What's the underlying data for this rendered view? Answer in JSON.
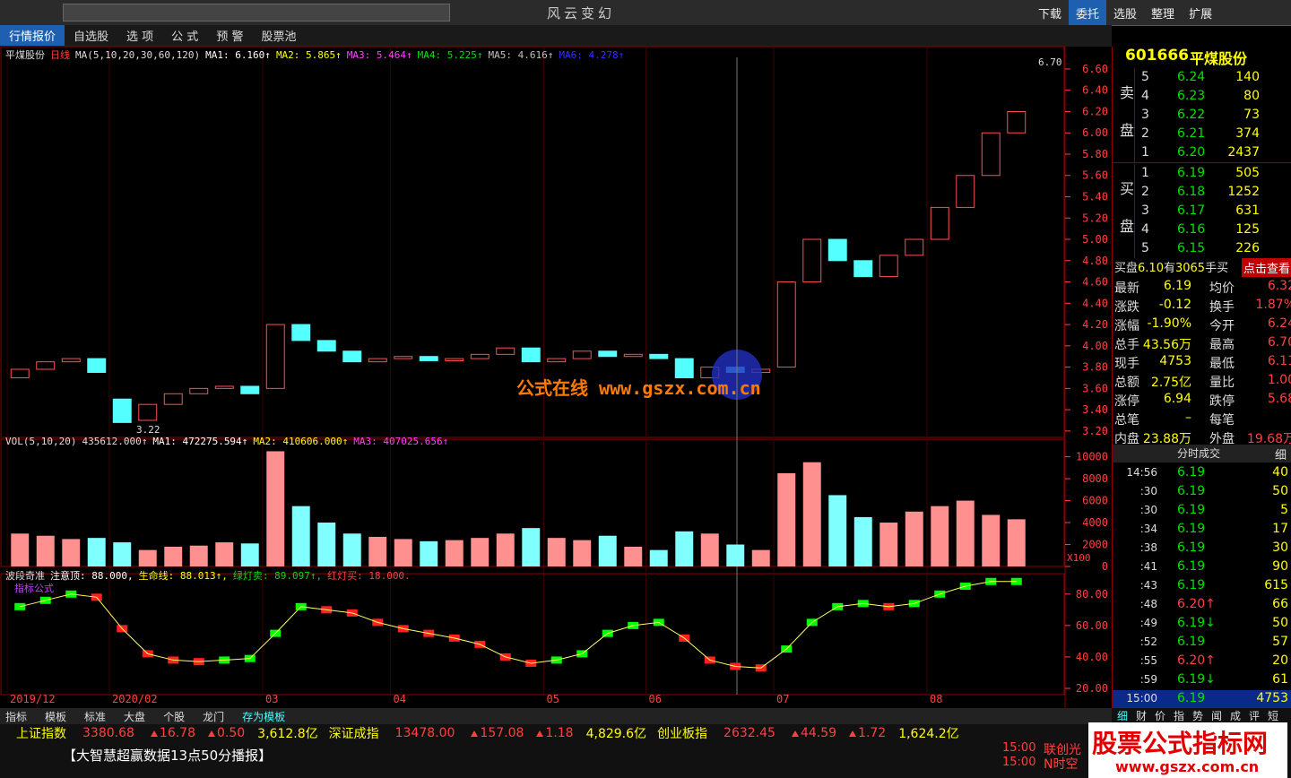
{
  "toolbar": {
    "title": "风云变幻",
    "tabs": [
      "行情报价",
      "自选股",
      "选 项",
      "公 式",
      "预 警",
      "股票池"
    ],
    "right": [
      "下载",
      "委托",
      "选股",
      "整理",
      "扩展"
    ]
  },
  "chart": {
    "type": "candlestick",
    "stock_name": "平煤股份",
    "period": "日线",
    "ma_legend": "MA(5,10,20,30,60,120)",
    "mas": [
      {
        "label": "MA1: 6.160↑",
        "color": "#ffffff"
      },
      {
        "label": "MA2: 5.865↑",
        "color": "#ffff00"
      },
      {
        "label": "MA3: 5.464↑",
        "color": "#ff40ff"
      },
      {
        "label": "MA4: 5.225↑",
        "color": "#00e000"
      },
      {
        "label": "MA5: 4.616↑",
        "color": "#c0c0c0"
      },
      {
        "label": "MA6: 4.278↑",
        "color": "#3030ff"
      }
    ],
    "ylim": [
      3.14,
      6.81
    ],
    "yticks": [
      {
        "value": 3.2,
        "label": "3.20"
      },
      {
        "value": 3.4,
        "label": "3.40"
      },
      {
        "value": 3.6,
        "label": "3.60"
      },
      {
        "value": 3.8,
        "label": "3.80"
      },
      {
        "value": 4.0,
        "label": "4.00"
      },
      {
        "value": 4.2,
        "label": "4.20"
      },
      {
        "value": 4.4,
        "label": "4.40"
      },
      {
        "value": 4.6,
        "label": "4.60"
      },
      {
        "value": 4.8,
        "label": "4.80"
      },
      {
        "value": 5.0,
        "label": "5.00"
      },
      {
        "value": 5.2,
        "label": "5.20"
      },
      {
        "value": 5.4,
        "label": "5.40"
      },
      {
        "value": 5.6,
        "label": "5.60"
      },
      {
        "value": 5.8,
        "label": "5.80"
      },
      {
        "value": 6.0,
        "label": "6.00"
      },
      {
        "value": 6.2,
        "label": "6.20"
      },
      {
        "value": 6.4,
        "label": "6.40"
      },
      {
        "value": 6.6,
        "label": "6.60"
      }
    ],
    "high_label": "6.70",
    "low_label": "3.22",
    "watermark": "公式在线 www.gszx.com.cn",
    "categories": [
      "2019/12",
      null,
      null,
      null,
      "2020/02",
      null,
      null,
      null,
      null,
      null,
      "03",
      null,
      null,
      null,
      null,
      "04",
      null,
      null,
      null,
      null,
      null,
      "05",
      null,
      null,
      null,
      "06",
      null,
      null,
      null,
      null,
      "07",
      null,
      null,
      null,
      null,
      null,
      "08",
      null,
      null,
      null
    ],
    "open": [
      3.7,
      3.78,
      3.85,
      3.88,
      3.5,
      3.3,
      3.45,
      3.55,
      3.6,
      3.62,
      3.6,
      4.2,
      4.05,
      3.95,
      3.85,
      3.88,
      3.9,
      3.86,
      3.88,
      3.92,
      3.98,
      3.85,
      3.88,
      3.95,
      3.9,
      3.92,
      3.88,
      3.7,
      3.8,
      3.75,
      3.8,
      4.6,
      5.0,
      4.8,
      4.65,
      4.85,
      5.0,
      5.3,
      5.6,
      6.0
    ],
    "close": [
      3.78,
      3.85,
      3.88,
      3.75,
      3.28,
      3.45,
      3.55,
      3.6,
      3.62,
      3.55,
      4.2,
      4.05,
      3.95,
      3.85,
      3.88,
      3.9,
      3.86,
      3.88,
      3.92,
      3.98,
      3.85,
      3.88,
      3.95,
      3.9,
      3.92,
      3.88,
      3.7,
      3.8,
      3.75,
      3.78,
      4.6,
      5.0,
      4.8,
      4.65,
      4.85,
      5.0,
      5.3,
      5.6,
      6.0,
      6.2
    ],
    "vol_legend": [
      "VOL(5,10,20)",
      "435612.000↑",
      "MA1: 472275.594↑",
      "MA2: 410606.000↑",
      "MA3: 407025.656↑"
    ],
    "vol_unit": "X100",
    "vol_ylim": [
      0,
      11600
    ],
    "vol_yticks": [
      0,
      2000,
      4000,
      6000,
      8000,
      10000
    ],
    "volumes": [
      3000,
      2800,
      2500,
      2600,
      2200,
      1500,
      1800,
      1900,
      2200,
      2100,
      10500,
      5500,
      4000,
      3000,
      2700,
      2500,
      2300,
      2400,
      2600,
      3000,
      3500,
      2600,
      2400,
      2800,
      1800,
      1500,
      3200,
      3000,
      2000,
      1500,
      8500,
      9500,
      6500,
      4500,
      4000,
      5000,
      5500,
      6000,
      4700,
      4300
    ],
    "ind_legend": [
      {
        "label": "波段奇准",
        "color": "#dddddd"
      },
      {
        "label": "注意顶: 88.000,",
        "color": "#ffffff"
      },
      {
        "label": "生命线: 88.013↑,",
        "color": "#ffff00"
      },
      {
        "label": "绿灯卖: 89.097↑,",
        "color": "#00e000"
      },
      {
        "label": "红灯买: 18.000.",
        "color": "#ff4040"
      }
    ],
    "ind_title": "指标公式",
    "ind_ylim": [
      16,
      93
    ],
    "ind_yticks": [
      {
        "value": 20,
        "label": "20.00"
      },
      {
        "value": 40,
        "label": "40.00"
      },
      {
        "value": 60,
        "label": "60.00"
      },
      {
        "value": 80,
        "label": "80.00"
      }
    ],
    "ind_values": [
      72,
      76,
      80,
      78,
      58,
      42,
      38,
      37,
      38,
      39,
      55,
      72,
      70,
      68,
      62,
      58,
      55,
      52,
      48,
      40,
      36,
      38,
      42,
      55,
      60,
      62,
      52,
      38,
      34,
      33,
      45,
      62,
      72,
      74,
      72,
      74,
      80,
      85,
      88,
      88
    ]
  },
  "quote": {
    "code": "601666",
    "name": "平煤股份",
    "sell_label": [
      "卖",
      "盘"
    ],
    "buy_label": [
      "买",
      "盘"
    ],
    "sell": [
      [
        "5",
        "6.24",
        "140"
      ],
      [
        "4",
        "6.23",
        "80"
      ],
      [
        "3",
        "6.22",
        "73"
      ],
      [
        "2",
        "6.21",
        "374"
      ],
      [
        "1",
        "6.20",
        "2437"
      ]
    ],
    "buy": [
      [
        "1",
        "6.19",
        "505"
      ],
      [
        "2",
        "6.18",
        "1252"
      ],
      [
        "3",
        "6.17",
        "631"
      ],
      [
        "4",
        "6.16",
        "125"
      ],
      [
        "5",
        "6.15",
        "226"
      ]
    ],
    "buy_note": [
      "买盘",
      "6.10",
      "有",
      "3065",
      "手买"
    ],
    "view_btn": "点击查看",
    "stats": [
      [
        "最新",
        "6.19",
        "均价",
        "6.32"
      ],
      [
        "涨跌",
        "-0.12",
        "换手",
        "1.87%"
      ],
      [
        "涨幅",
        "-1.90%",
        "今开",
        "6.24"
      ],
      [
        "总手",
        "43.56万",
        "最高",
        "6.70"
      ],
      [
        "现手",
        "4753",
        "最低",
        "6.11"
      ],
      [
        "总额",
        "2.75亿",
        "量比",
        "1.00"
      ],
      [
        "涨停",
        "6.94",
        "跌停",
        "5.68"
      ],
      [
        "总笔",
        "–",
        "每笔"
      ],
      [
        "内盘",
        "23.88万",
        "外盘",
        "19.68万"
      ]
    ],
    "ticks_title": "分时成交",
    "ticks_btn": "细",
    "ticks": [
      [
        "14:56",
        "6.19",
        "40"
      ],
      [
        ":30",
        "6.19",
        "50"
      ],
      [
        ":30",
        "6.19",
        "5"
      ],
      [
        ":34",
        "6.19",
        "17"
      ],
      [
        ":38",
        "6.19",
        "30"
      ],
      [
        ":41",
        "6.19",
        "90"
      ],
      [
        ":43",
        "6.19",
        "615"
      ],
      [
        ":48",
        "6.20↑",
        "66"
      ],
      [
        ":49",
        "6.19↓",
        "50"
      ],
      [
        ":52",
        "6.19",
        "57"
      ],
      [
        ":55",
        "6.20↑",
        "20"
      ],
      [
        ":59",
        "6.19↓",
        "61"
      ],
      [
        "15:00",
        "6.19",
        "4753"
      ]
    ],
    "tabs": [
      "细",
      "财",
      "价",
      "指",
      "势",
      "闻",
      "成",
      "评",
      "短"
    ]
  },
  "bottom": {
    "tabs": [
      "指标",
      "模板",
      "标准",
      "大盘",
      "个股",
      "龙门",
      "存为模板"
    ],
    "indices": [
      [
        "上证指数",
        "3380.68",
        "16.78",
        "0.50",
        "3,612.8亿"
      ],
      [
        "深证成指",
        "13478.00",
        "157.08",
        "1.18",
        "4,829.6亿"
      ],
      [
        "创业板指",
        "2632.45",
        "44.59",
        "1.72",
        "1,624.2亿"
      ]
    ],
    "news": "【大智慧超赢数据13点50分播报】",
    "alerts": [
      [
        "15:00",
        "联创光"
      ],
      [
        "15:00",
        "N时空"
      ]
    ],
    "watermark": [
      "股票公式指标网",
      "www.gszx.com.cn"
    ]
  }
}
